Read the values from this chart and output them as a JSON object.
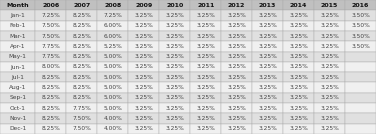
{
  "columns": [
    "Month",
    "2006",
    "2007",
    "2008",
    "2009",
    "2010",
    "2011",
    "2012",
    "2013",
    "2014",
    "2015",
    "2016"
  ],
  "rows": [
    [
      "Jan-1",
      "7.25%",
      "8.25%",
      "7.25%",
      "3.25%",
      "3.25%",
      "3.25%",
      "3.25%",
      "3.25%",
      "3.25%",
      "3.25%",
      "3.50%"
    ],
    [
      "Feb-1",
      "7.50%",
      "8.25%",
      "6.00%",
      "3.25%",
      "3.25%",
      "3.25%",
      "3.25%",
      "3.25%",
      "3.25%",
      "3.25%",
      "3.50%"
    ],
    [
      "Mar-1",
      "7.50%",
      "8.25%",
      "6.00%",
      "3.25%",
      "3.25%",
      "3.25%",
      "3.25%",
      "3.25%",
      "3.25%",
      "3.25%",
      "3.50%"
    ],
    [
      "Apr-1",
      "7.75%",
      "8.25%",
      "5.25%",
      "3.25%",
      "3.25%",
      "3.25%",
      "3.25%",
      "3.25%",
      "3.25%",
      "3.25%",
      "3.50%"
    ],
    [
      "May-1",
      "7.75%",
      "8.25%",
      "5.00%",
      "3.25%",
      "3.25%",
      "3.25%",
      "3.25%",
      "3.25%",
      "3.25%",
      "3.25%",
      ""
    ],
    [
      "Jun-1",
      "8.00%",
      "8.25%",
      "5.00%",
      "3.25%",
      "3.25%",
      "3.25%",
      "3.25%",
      "3.25%",
      "3.25%",
      "3.25%",
      ""
    ],
    [
      "Jul-1",
      "8.25%",
      "8.25%",
      "5.00%",
      "3.25%",
      "3.25%",
      "3.25%",
      "3.25%",
      "3.25%",
      "3.25%",
      "3.25%",
      ""
    ],
    [
      "Aug-1",
      "8.25%",
      "8.25%",
      "5.00%",
      "3.25%",
      "3.25%",
      "3.25%",
      "3.25%",
      "3.25%",
      "3.25%",
      "3.25%",
      ""
    ],
    [
      "Sep-1",
      "8.25%",
      "8.25%",
      "5.00%",
      "3.25%",
      "3.25%",
      "3.25%",
      "3.25%",
      "3.25%",
      "3.25%",
      "3.25%",
      ""
    ],
    [
      "Oct-1",
      "8.25%",
      "7.75%",
      "5.00%",
      "3.25%",
      "3.25%",
      "3.25%",
      "3.25%",
      "3.25%",
      "3.25%",
      "3.25%",
      ""
    ],
    [
      "Nov-1",
      "8.25%",
      "7.50%",
      "4.00%",
      "3.25%",
      "3.25%",
      "3.25%",
      "3.25%",
      "3.25%",
      "3.25%",
      "3.25%",
      ""
    ],
    [
      "Dec-1",
      "8.25%",
      "7.50%",
      "4.00%",
      "3.25%",
      "3.25%",
      "3.25%",
      "3.25%",
      "3.25%",
      "3.25%",
      "3.25%",
      ""
    ]
  ],
  "header_bg": "#c0c0c0",
  "row_even_bg": "#e0e0e0",
  "row_odd_bg": "#f0f0f0",
  "header_text_color": "#111111",
  "cell_text_color": "#444444",
  "header_fontsize": 4.5,
  "cell_fontsize": 4.2,
  "edge_color": "#aaaaaa",
  "edge_lw": 0.3
}
